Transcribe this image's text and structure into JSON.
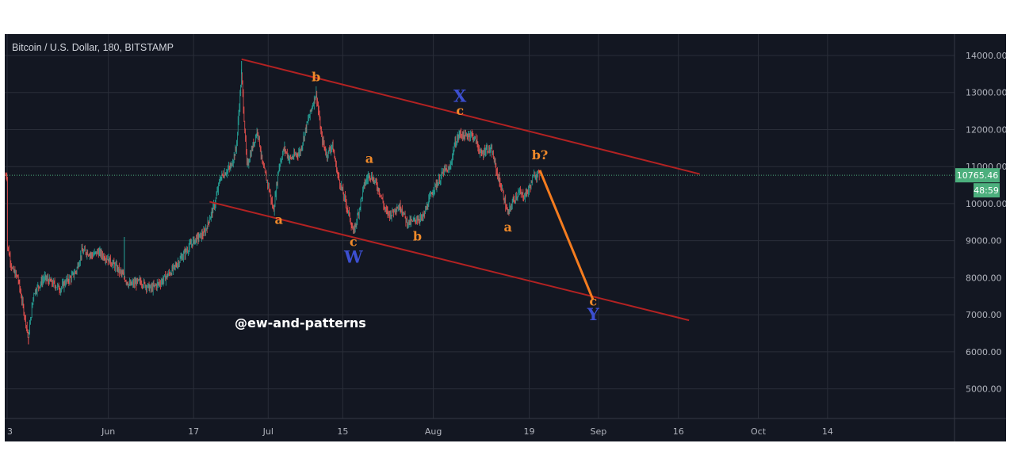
{
  "chart_data": {
    "type": "candlestick",
    "title": "Bitcoin / U.S. Dollar, 180, BITSTAMP",
    "symbol": "Bitcoin / U.S. Dollar",
    "interval": "180",
    "exchange": "BITSTAMP",
    "ylim": [
      4000,
      14500
    ],
    "y_ticks": [
      "14000.00",
      "13000.00",
      "12000.00",
      "11000.00",
      "10000.00",
      "9000.00",
      "8000.00",
      "7000.00",
      "6000.00",
      "5000.00"
    ],
    "x_tick_labels": [
      "3",
      "Jun",
      "17",
      "Jul",
      "15",
      "Aug",
      "19",
      "Sep",
      "16",
      "Oct",
      "14"
    ],
    "last_price": 10765.46,
    "last_price_label": "10765.46",
    "countdown_label": "48:59",
    "watermark": "@ew-and-patterns",
    "colors": {
      "background": "#131722",
      "grid": "#2a2e39",
      "up": "#26a69a",
      "down": "#ef5350",
      "price_badge": "#4caf7d",
      "channel": "#b22222",
      "projection": "#f57c1f",
      "wave_orange": "#f08a2a",
      "wave_blue": "#3c4fd1"
    },
    "price_path": [
      [
        "2019-05-13",
        8900
      ],
      [
        "2019-05-14",
        8200
      ],
      [
        "2019-05-15",
        8000
      ],
      [
        "2019-05-16",
        7200
      ],
      [
        "2019-05-17",
        6400
      ],
      [
        "2019-05-18",
        7600
      ],
      [
        "2019-05-19",
        7800
      ],
      [
        "2019-05-20",
        8000
      ],
      [
        "2019-05-21",
        7900
      ],
      [
        "2019-05-22",
        7800
      ],
      [
        "2019-05-23",
        7700
      ],
      [
        "2019-05-24",
        7900
      ],
      [
        "2019-05-25",
        8000
      ],
      [
        "2019-05-26",
        8200
      ],
      [
        "2019-05-27",
        8700
      ],
      [
        "2019-05-28",
        8700
      ],
      [
        "2019-05-29",
        8600
      ],
      [
        "2019-05-30",
        8700
      ],
      [
        "2019-06-01",
        8500
      ],
      [
        "2019-06-03",
        8200
      ],
      [
        "2019-06-05",
        7800
      ],
      [
        "2019-06-07",
        7900
      ],
      [
        "2019-06-09",
        7700
      ],
      [
        "2019-06-11",
        7900
      ],
      [
        "2019-06-13",
        8200
      ],
      [
        "2019-06-15",
        8600
      ],
      [
        "2019-06-17",
        9000
      ],
      [
        "2019-06-19",
        9200
      ],
      [
        "2019-06-21",
        10000
      ],
      [
        "2019-06-22",
        10700
      ],
      [
        "2019-06-24",
        11000
      ],
      [
        "2019-06-25",
        11500
      ],
      [
        "2019-06-26",
        13500
      ],
      [
        "2019-06-27",
        11000
      ],
      [
        "2019-06-28",
        11500
      ],
      [
        "2019-06-29",
        12000
      ],
      [
        "2019-06-30",
        11000
      ],
      [
        "2019-07-01",
        10500
      ],
      [
        "2019-07-02",
        9800
      ],
      [
        "2019-07-03",
        11000
      ],
      [
        "2019-07-04",
        11500
      ],
      [
        "2019-07-05",
        11200
      ],
      [
        "2019-07-07",
        11400
      ],
      [
        "2019-07-08",
        12000
      ],
      [
        "2019-07-09",
        12500
      ],
      [
        "2019-07-10",
        13000
      ],
      [
        "2019-07-11",
        11800
      ],
      [
        "2019-07-12",
        11300
      ],
      [
        "2019-07-13",
        11600
      ],
      [
        "2019-07-14",
        10800
      ],
      [
        "2019-07-15",
        10300
      ],
      [
        "2019-07-16",
        9800
      ],
      [
        "2019-07-17",
        9200
      ],
      [
        "2019-07-18",
        9800
      ],
      [
        "2019-07-19",
        10500
      ],
      [
        "2019-07-20",
        10800
      ],
      [
        "2019-07-21",
        10600
      ],
      [
        "2019-07-22",
        10300
      ],
      [
        "2019-07-23",
        9800
      ],
      [
        "2019-07-24",
        9700
      ],
      [
        "2019-07-25",
        9900
      ],
      [
        "2019-07-26",
        9900
      ],
      [
        "2019-07-27",
        9500
      ],
      [
        "2019-07-28",
        9500
      ],
      [
        "2019-07-29",
        9600
      ],
      [
        "2019-07-30",
        9600
      ],
      [
        "2019-07-31",
        10000
      ],
      [
        "2019-08-01",
        10400
      ],
      [
        "2019-08-02",
        10600
      ],
      [
        "2019-08-03",
        10900
      ],
      [
        "2019-08-04",
        10900
      ],
      [
        "2019-08-05",
        11600
      ],
      [
        "2019-08-06",
        11900
      ],
      [
        "2019-08-07",
        11800
      ],
      [
        "2019-08-08",
        11900
      ],
      [
        "2019-08-09",
        11700
      ],
      [
        "2019-08-10",
        11300
      ],
      [
        "2019-08-11",
        11500
      ],
      [
        "2019-08-12",
        11400
      ],
      [
        "2019-08-13",
        10800
      ],
      [
        "2019-08-14",
        10300
      ],
      [
        "2019-08-15",
        9700
      ],
      [
        "2019-08-16",
        10100
      ],
      [
        "2019-08-17",
        10300
      ],
      [
        "2019-08-18",
        10200
      ],
      [
        "2019-08-19",
        10400
      ],
      [
        "2019-08-20",
        10800
      ],
      [
        "2019-08-21",
        10765
      ]
    ],
    "channel_upper": [
      [
        "2019-06-26",
        13900
      ],
      [
        "2019-09-20",
        10800
      ]
    ],
    "channel_lower": [
      [
        "2019-06-20",
        10050
      ],
      [
        "2019-09-18",
        6850
      ]
    ],
    "projection": [
      [
        "2019-08-21",
        10900
      ],
      [
        "2019-08-31",
        7400
      ]
    ],
    "wave_labels": [
      {
        "text": "a",
        "date": "2019-07-03",
        "price": 9450,
        "color": "orange"
      },
      {
        "text": "b",
        "date": "2019-07-10",
        "price": 13300,
        "color": "orange"
      },
      {
        "text": "c",
        "date": "2019-07-17",
        "price": 8850,
        "color": "orange"
      },
      {
        "text": "W",
        "date": "2019-07-17",
        "price": 8400,
        "color": "blue"
      },
      {
        "text": "a",
        "date": "2019-07-20",
        "price": 11100,
        "color": "orange"
      },
      {
        "text": "b",
        "date": "2019-07-29",
        "price": 9000,
        "color": "orange"
      },
      {
        "text": "X",
        "date": "2019-08-06",
        "price": 12750,
        "color": "blue"
      },
      {
        "text": "c",
        "date": "2019-08-06",
        "price": 12400,
        "color": "orange"
      },
      {
        "text": "a",
        "date": "2019-08-15",
        "price": 9250,
        "color": "orange"
      },
      {
        "text": "b?",
        "date": "2019-08-21",
        "price": 11200,
        "color": "orange"
      },
      {
        "text": "c",
        "date": "2019-08-31",
        "price": 7250,
        "color": "orange"
      },
      {
        "text": "Y",
        "date": "2019-08-31",
        "price": 6850,
        "color": "blue"
      }
    ]
  }
}
